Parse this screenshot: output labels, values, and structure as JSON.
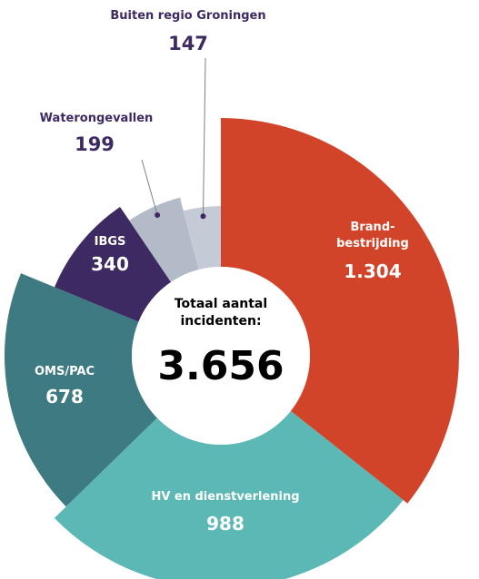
{
  "chart_data": {
    "type": "pie",
    "variant": "donut-radial",
    "center": {
      "title_line1": "Totaal aantal",
      "title_line2": "incidenten:",
      "total": "3.656"
    },
    "total_value": 3656,
    "slices": [
      {
        "key": "brand",
        "name_lines": [
          "Brand-",
          "bestrijding"
        ],
        "value": 1304,
        "value_label": "1.304",
        "color": "#d2442a"
      },
      {
        "key": "hv",
        "name_lines": [
          "HV en dienstverlening"
        ],
        "value": 988,
        "value_label": "988",
        "color": "#5cb8b5"
      },
      {
        "key": "oms",
        "name_lines": [
          "OMS/PAC"
        ],
        "value": 678,
        "value_label": "678",
        "color": "#3e7a82"
      },
      {
        "key": "ibgs",
        "name_lines": [
          "IBGS"
        ],
        "value": 340,
        "value_label": "340",
        "color": "#3d2a63"
      },
      {
        "key": "water",
        "name_lines": [
          "Waterongevallen"
        ],
        "value": 199,
        "value_label": "199",
        "color": "#b3bac8"
      },
      {
        "key": "buiten",
        "name_lines": [
          "Buiten regio Groningen"
        ],
        "value": 147,
        "value_label": "147",
        "color": "#c5cbd6"
      }
    ],
    "label_color": "#3d2a63"
  }
}
